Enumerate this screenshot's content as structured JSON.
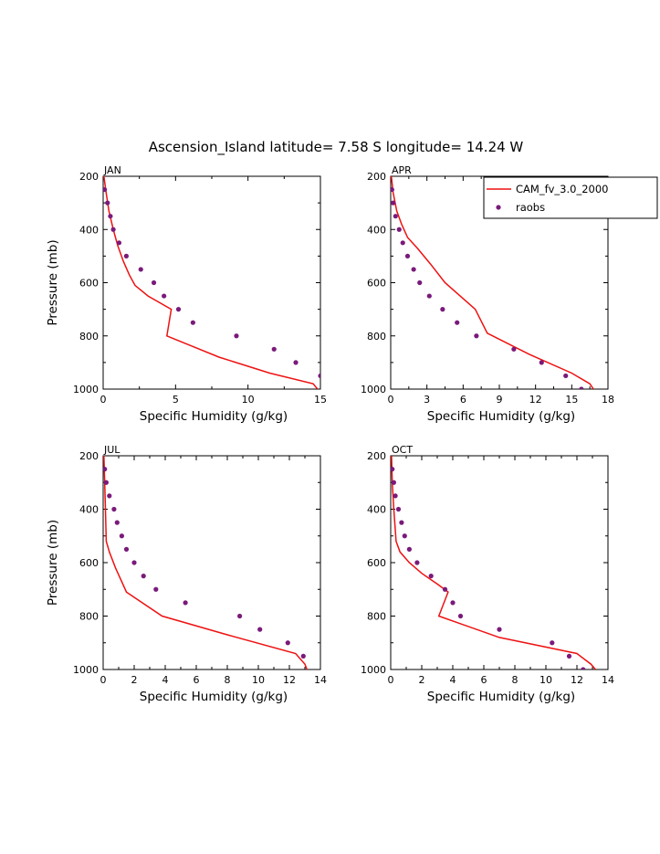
{
  "figure_title": "Ascension_Island  latitude= 7.58 S longitude= 14.24 W",
  "colors": {
    "model": "#ee1111",
    "obs": "#7a1a7a",
    "axis": "#000000"
  },
  "legend": {
    "model_label": "CAM_fv_3.0_2000",
    "obs_label": "raobs"
  },
  "chart_data": [
    {
      "type": "line",
      "panel": "JAN",
      "xlabel": "Specific Humidity (g/kg)",
      "ylabel": "Pressure (mb)",
      "xlim": [
        0,
        15
      ],
      "ylim": [
        200,
        1000
      ],
      "y_inverted": true,
      "xticks": [
        0,
        5,
        10,
        15
      ],
      "yticks": [
        200,
        400,
        600,
        800,
        1000
      ],
      "series": [
        {
          "kind": "line",
          "x": [
            0.05,
            0.2,
            0.4,
            0.7,
            1.0,
            1.4,
            1.8,
            2.2,
            3.1,
            4.7,
            4.4,
            8.0,
            11.5,
            14.5,
            14.8
          ],
          "y": [
            200,
            260,
            330,
            400,
            460,
            520,
            570,
            610,
            650,
            700,
            800,
            880,
            940,
            980,
            1000
          ]
        },
        {
          "kind": "scatter",
          "x": [
            0.1,
            0.3,
            0.5,
            0.7,
            1.1,
            1.6,
            2.6,
            3.5,
            4.2,
            5.2,
            6.2,
            9.2,
            11.8,
            13.3,
            15.0
          ],
          "y": [
            250,
            300,
            350,
            400,
            450,
            500,
            550,
            600,
            650,
            700,
            750,
            800,
            850,
            900,
            950
          ]
        }
      ]
    },
    {
      "type": "line",
      "panel": "APR",
      "xlabel": "Specific Humidity (g/kg)",
      "ylabel": "",
      "xlim": [
        0,
        18
      ],
      "ylim": [
        200,
        1000
      ],
      "y_inverted": true,
      "xticks": [
        0,
        3,
        6,
        9,
        12,
        15,
        18
      ],
      "yticks": [
        200,
        400,
        600,
        800,
        1000
      ],
      "series": [
        {
          "kind": "line",
          "x": [
            0.05,
            0.2,
            0.5,
            0.9,
            1.4,
            2.2,
            3.3,
            4.5,
            7.0,
            8.0,
            11.5,
            15.0,
            16.5,
            16.8
          ],
          "y": [
            200,
            260,
            330,
            380,
            430,
            470,
            530,
            600,
            700,
            790,
            870,
            940,
            980,
            1000
          ]
        },
        {
          "kind": "scatter",
          "x": [
            0.1,
            0.2,
            0.4,
            0.7,
            1.0,
            1.4,
            1.9,
            2.4,
            3.2,
            4.3,
            5.5,
            7.1,
            10.2,
            12.5,
            14.5,
            15.8
          ],
          "y": [
            250,
            300,
            350,
            400,
            450,
            500,
            550,
            600,
            650,
            700,
            750,
            800,
            850,
            900,
            950,
            1000
          ]
        }
      ]
    },
    {
      "type": "line",
      "panel": "JUL",
      "xlabel": "Specific Humidity (g/kg)",
      "ylabel": "Pressure (mb)",
      "xlim": [
        0,
        14
      ],
      "ylim": [
        200,
        1000
      ],
      "y_inverted": true,
      "xticks": [
        0,
        2,
        4,
        6,
        8,
        10,
        12,
        14
      ],
      "yticks": [
        200,
        400,
        600,
        800,
        1000
      ],
      "series": [
        {
          "kind": "line",
          "x": [
            0.05,
            0.1,
            0.15,
            0.2,
            0.4,
            0.8,
            1.5,
            3.8,
            8.0,
            12.4,
            13.0,
            13.2
          ],
          "y": [
            200,
            300,
            400,
            520,
            560,
            620,
            710,
            800,
            870,
            940,
            980,
            1010
          ]
        },
        {
          "kind": "scatter",
          "x": [
            0.1,
            0.2,
            0.4,
            0.7,
            0.9,
            1.2,
            1.5,
            2.0,
            2.6,
            3.4,
            5.3,
            8.8,
            10.1,
            11.9,
            12.9
          ],
          "y": [
            250,
            300,
            350,
            400,
            450,
            500,
            550,
            600,
            650,
            700,
            750,
            800,
            850,
            900,
            950
          ]
        }
      ]
    },
    {
      "type": "line",
      "panel": "OCT",
      "xlabel": "Specific Humidity (g/kg)",
      "ylabel": "",
      "xlim": [
        0,
        14
      ],
      "ylim": [
        200,
        1000
      ],
      "y_inverted": true,
      "xticks": [
        0,
        2,
        4,
        6,
        8,
        10,
        12,
        14
      ],
      "yticks": [
        200,
        400,
        600,
        800,
        1000
      ],
      "series": [
        {
          "kind": "line",
          "x": [
            0.05,
            0.1,
            0.2,
            0.35,
            0.6,
            1.2,
            2.0,
            3.0,
            3.7,
            3.1,
            7.0,
            12.0,
            12.9,
            13.2
          ],
          "y": [
            200,
            300,
            400,
            520,
            560,
            600,
            640,
            680,
            710,
            800,
            880,
            940,
            980,
            1000
          ]
        },
        {
          "kind": "scatter",
          "x": [
            0.1,
            0.2,
            0.3,
            0.5,
            0.7,
            0.9,
            1.2,
            1.7,
            2.6,
            3.5,
            4.0,
            4.5,
            7.0,
            10.4,
            11.5,
            12.4
          ],
          "y": [
            250,
            300,
            350,
            400,
            450,
            500,
            550,
            600,
            650,
            700,
            750,
            800,
            850,
            900,
            950,
            1000
          ]
        }
      ]
    }
  ]
}
